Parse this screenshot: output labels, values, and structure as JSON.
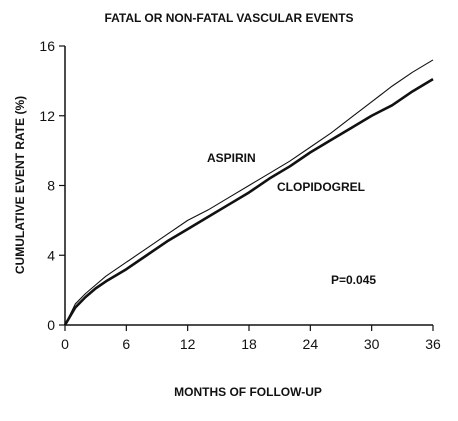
{
  "chart_data": {
    "type": "line",
    "title": "FATAL OR NON-FATAL VASCULAR EVENTS",
    "xlabel": "MONTHS OF FOLLOW-UP",
    "ylabel": "CUMULATIVE EVENT RATE (%)",
    "xlim": [
      0,
      36
    ],
    "ylim": [
      0,
      16
    ],
    "xticks": [
      0,
      6,
      12,
      18,
      24,
      30,
      36
    ],
    "yticks": [
      0,
      4,
      8,
      12,
      16
    ],
    "grid": false,
    "annotation": "P=0.045",
    "series": [
      {
        "name": "ASPIRIN",
        "color": "#111111",
        "style": "thin",
        "x": [
          0,
          1,
          2,
          3,
          4,
          6,
          8,
          10,
          12,
          14,
          16,
          18,
          20,
          22,
          24,
          26,
          28,
          30,
          32,
          34,
          36
        ],
        "y": [
          0,
          1.2,
          1.8,
          2.3,
          2.8,
          3.6,
          4.4,
          5.2,
          6.0,
          6.6,
          7.3,
          8.0,
          8.7,
          9.4,
          10.2,
          11.0,
          11.9,
          12.8,
          13.7,
          14.5,
          15.2
        ]
      },
      {
        "name": "CLOPIDOGREL",
        "color": "#111111",
        "style": "thick",
        "x": [
          0,
          1,
          2,
          3,
          4,
          6,
          8,
          10,
          12,
          14,
          16,
          18,
          20,
          22,
          24,
          26,
          28,
          30,
          32,
          34,
          36
        ],
        "y": [
          0,
          1.0,
          1.6,
          2.1,
          2.5,
          3.2,
          4.0,
          4.8,
          5.5,
          6.2,
          6.9,
          7.6,
          8.4,
          9.1,
          9.9,
          10.6,
          11.3,
          12.0,
          12.6,
          13.4,
          14.1
        ]
      }
    ]
  }
}
